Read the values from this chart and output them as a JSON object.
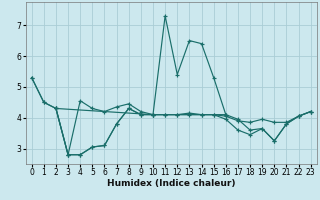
{
  "title": "",
  "xlabel": "Humidex (Indice chaleur)",
  "bg_color": "#cce8ee",
  "grid_color": "#aacdd5",
  "line_color": "#1a6e6a",
  "xlim": [
    -0.5,
    23.5
  ],
  "ylim": [
    2.5,
    7.75
  ],
  "yticks": [
    3,
    4,
    5,
    6,
    7
  ],
  "xticks": [
    0,
    1,
    2,
    3,
    4,
    5,
    6,
    7,
    8,
    9,
    10,
    11,
    12,
    13,
    14,
    15,
    16,
    17,
    18,
    19,
    20,
    21,
    22,
    23
  ],
  "series": [
    {
      "x": [
        0,
        1,
        2,
        10,
        11,
        12,
        13,
        14,
        15,
        16
      ],
      "y": [
        5.3,
        4.5,
        4.3,
        4.1,
        7.3,
        5.4,
        6.5,
        6.4,
        5.3,
        4.1
      ]
    },
    {
      "x": [
        2,
        3,
        4,
        5,
        6,
        7,
        8,
        9,
        10,
        11,
        12,
        13,
        14,
        15,
        16,
        17,
        18,
        19,
        20,
        21,
        22,
        23
      ],
      "y": [
        4.3,
        2.8,
        4.55,
        4.3,
        4.2,
        4.35,
        4.45,
        4.2,
        4.1,
        4.1,
        4.1,
        4.15,
        4.1,
        4.1,
        4.05,
        3.9,
        3.85,
        3.95,
        3.85,
        3.85,
        4.05,
        4.2
      ]
    },
    {
      "x": [
        2,
        3,
        4,
        5,
        6,
        7,
        8,
        9,
        10,
        11,
        12,
        13,
        14,
        15,
        16,
        17,
        18,
        19,
        20,
        21,
        22,
        23
      ],
      "y": [
        4.3,
        2.8,
        2.8,
        3.05,
        3.1,
        3.8,
        4.3,
        4.1,
        4.1,
        4.1,
        4.1,
        4.1,
        4.1,
        4.1,
        3.95,
        3.6,
        3.45,
        3.65,
        3.25,
        3.8,
        4.05,
        4.2
      ]
    },
    {
      "x": [
        0,
        1,
        2,
        3,
        4,
        5,
        6,
        7,
        8,
        9,
        10,
        16,
        17,
        18,
        19,
        20,
        21,
        22,
        23
      ],
      "y": [
        5.3,
        4.5,
        4.3,
        2.8,
        2.8,
        3.05,
        3.1,
        3.8,
        4.3,
        4.1,
        4.1,
        4.1,
        3.95,
        3.6,
        3.65,
        3.25,
        3.8,
        4.05,
        4.2
      ]
    }
  ]
}
